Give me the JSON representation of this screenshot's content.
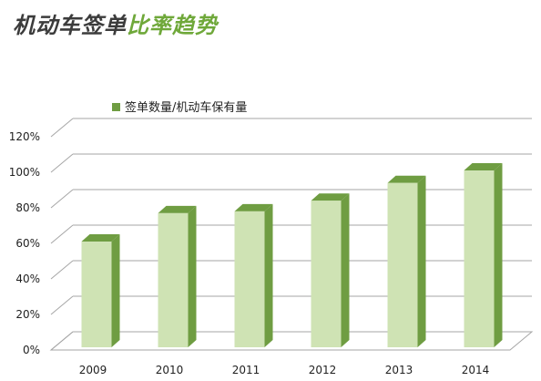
{
  "header": {
    "title_part1": "机动车签单",
    "title_part2": "比率趋势"
  },
  "colors": {
    "title_dark": "#3c3c3c",
    "title_accent": "#6fa83a",
    "bar_front": "#cfe3b4",
    "bar_side": "#6f9d42",
    "bar_top": "#6f9d42",
    "legend_marker": "#6f9d42",
    "grid": "#a6a6a6"
  },
  "chart_data": {
    "type": "bar",
    "categories": [
      "2009",
      "2010",
      "2011",
      "2012",
      "2013",
      "2014"
    ],
    "series": [
      {
        "name": "签单数量/机动车保有量",
        "values": [
          61,
          77,
          78,
          84,
          94,
          101
        ]
      }
    ],
    "ylim": [
      0,
      120
    ],
    "yticks": [
      "0%",
      "20%",
      "40%",
      "60%",
      "80%",
      "100%",
      "120%"
    ],
    "grid": true,
    "legend_position": "top-left",
    "three_d": true
  }
}
